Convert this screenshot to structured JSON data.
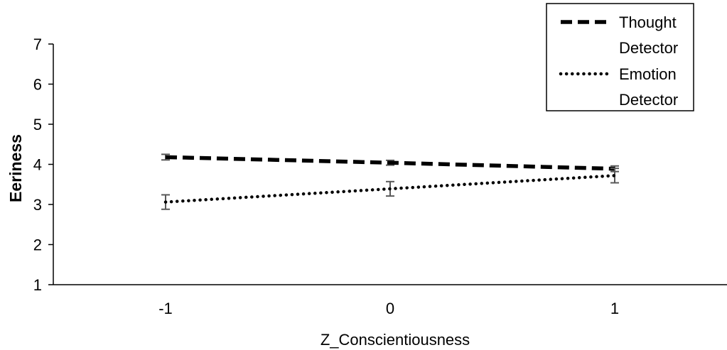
{
  "chart_data": {
    "type": "line",
    "xlabel": "Z_Conscientiousness",
    "ylabel": "Eeriness",
    "x": [
      -1,
      0,
      1
    ],
    "x_tick_labels": [
      "-1",
      "0",
      "1"
    ],
    "y_tick_labels": [
      "1",
      "2",
      "3",
      "4",
      "5",
      "6",
      "7"
    ],
    "xlim": [
      -1.5,
      1.5
    ],
    "ylim": [
      1,
      7
    ],
    "grid": false,
    "legend_position": "top-right",
    "series": [
      {
        "name_lines": [
          "Thought",
          "Detector"
        ],
        "style": "dashed",
        "values": [
          4.18,
          4.04,
          3.89
        ],
        "error": [
          0.07,
          0.06,
          0.07
        ]
      },
      {
        "name_lines": [
          "Emotion",
          "Detector"
        ],
        "style": "dotted",
        "values": [
          3.06,
          3.39,
          3.72
        ],
        "error": [
          0.18,
          0.18,
          0.18
        ]
      }
    ],
    "colors": {
      "line": "#000000",
      "error_bar": "#595959",
      "axis": "#000000"
    }
  }
}
